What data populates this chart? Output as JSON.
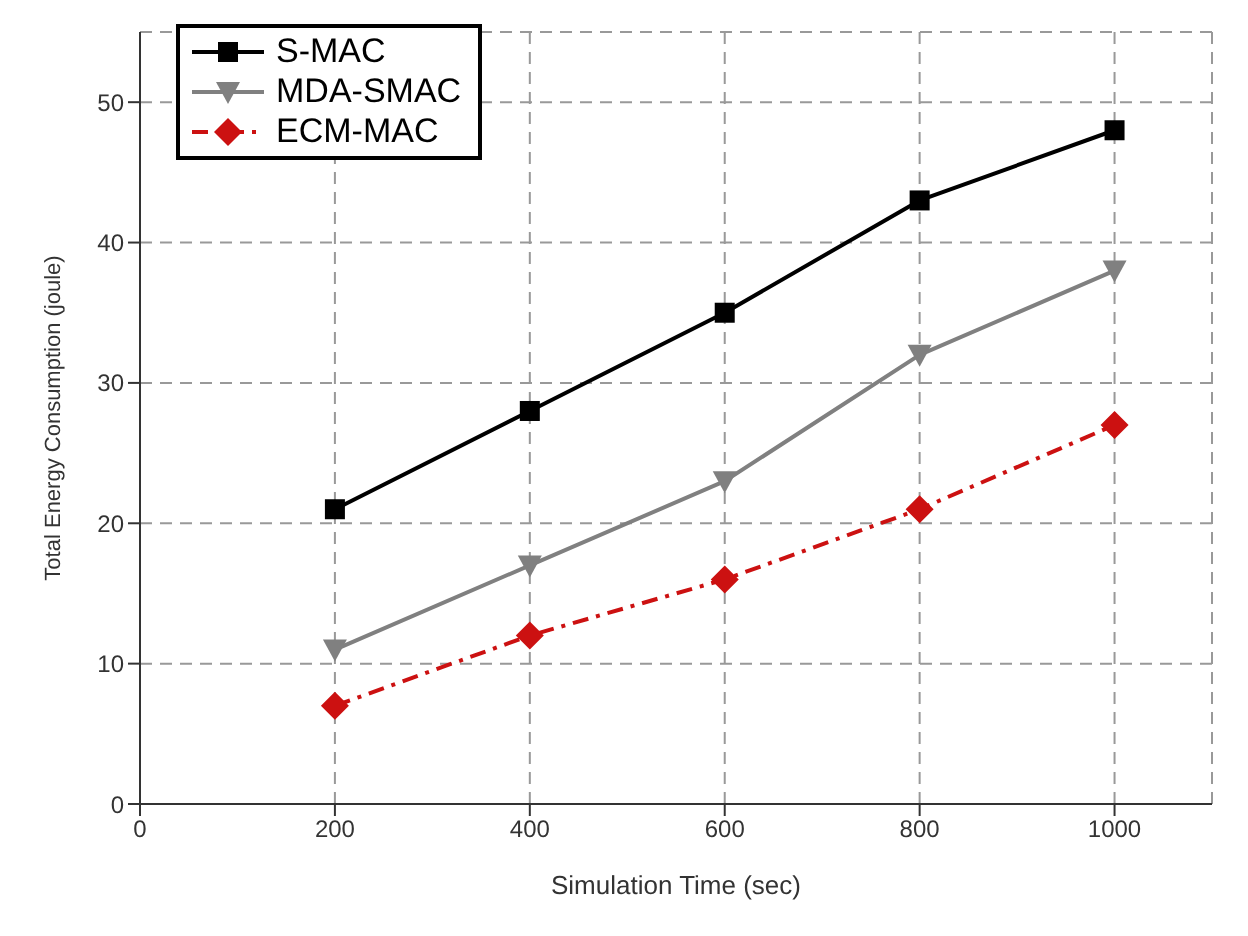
{
  "chart_data": {
    "type": "line",
    "xlabel": "Simulation Time (sec)",
    "ylabel": "Total Energy Consumption (joule)",
    "x": [
      200,
      400,
      600,
      800,
      1000
    ],
    "series": [
      {
        "name": "S-MAC",
        "color": "#000000",
        "marker": "square",
        "line_style": "solid",
        "values": [
          21,
          28,
          35,
          43,
          48
        ]
      },
      {
        "name": "MDA-SMAC",
        "color": "#808080",
        "marker": "triangle",
        "line_style": "solid",
        "values": [
          11,
          17,
          23,
          32,
          38
        ]
      },
      {
        "name": "ECM-MAC",
        "color": "#cc1111",
        "marker": "diamond",
        "line_style": "dashed",
        "values": [
          7,
          12,
          16,
          21,
          27
        ]
      }
    ],
    "xlim": [
      0,
      1100
    ],
    "xticks": [
      0,
      200,
      400,
      600,
      800,
      1000
    ],
    "ylim": [
      0,
      55
    ],
    "yticks": [
      0,
      10,
      20,
      30,
      40,
      50
    ],
    "grid": true,
    "legend": "top left"
  }
}
